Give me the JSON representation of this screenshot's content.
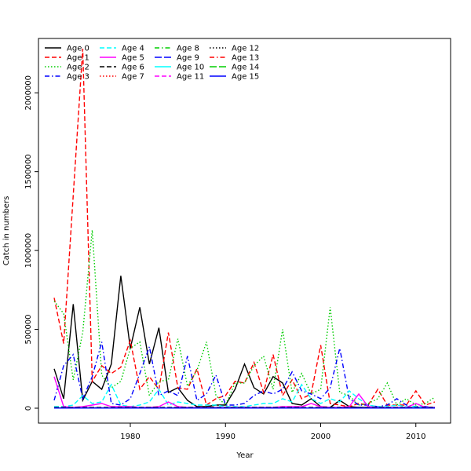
{
  "chart_data": {
    "type": "line",
    "title": "",
    "xlabel": "Year",
    "ylabel": "Catch in numbers",
    "xlim": [
      1972,
      2012
    ],
    "ylim": [
      0,
      2250000
    ],
    "x_ticks": [
      1980,
      1990,
      2000,
      2010
    ],
    "y_ticks": [
      0,
      500000,
      1000000,
      1500000,
      2000000
    ],
    "grid": false,
    "legend_position": "top-left",
    "x": [
      1972,
      1973,
      1974,
      1975,
      1976,
      1977,
      1978,
      1979,
      1980,
      1981,
      1982,
      1983,
      1984,
      1985,
      1986,
      1987,
      1988,
      1989,
      1990,
      1991,
      1992,
      1993,
      1994,
      1995,
      1996,
      1997,
      1998,
      1999,
      2000,
      2001,
      2002,
      2003,
      2004,
      2005,
      2006,
      2007,
      2008,
      2009,
      2010,
      2011,
      2012
    ],
    "series": [
      {
        "name": "Age 0",
        "color": "#000000",
        "dash": "solid",
        "values": [
          250000,
          60000,
          660000,
          50000,
          170000,
          120000,
          280000,
          840000,
          380000,
          640000,
          280000,
          510000,
          100000,
          130000,
          50000,
          10000,
          10000,
          20000,
          20000,
          120000,
          280000,
          130000,
          90000,
          200000,
          160000,
          30000,
          20000,
          60000,
          10000,
          5000,
          50000,
          10000,
          5000,
          5000,
          3000,
          3000,
          3000,
          2000,
          2000,
          1000,
          1000
        ]
      },
      {
        "name": "Age 1",
        "color": "#ff0000",
        "dash": "dashed",
        "values": [
          700000,
          410000,
          1350000,
          2280000,
          170000,
          270000,
          220000,
          260000,
          430000,
          120000,
          200000,
          120000,
          480000,
          130000,
          120000,
          250000,
          20000,
          60000,
          80000,
          170000,
          160000,
          290000,
          100000,
          340000,
          80000,
          180000,
          60000,
          90000,
          400000,
          30000,
          20000,
          10000,
          30000,
          20000,
          120000,
          20000,
          20000,
          20000,
          110000,
          20000,
          40000
        ]
      },
      {
        "name": "Age 2",
        "color": "#00cd00",
        "dash": "dotted",
        "values": [
          680000,
          600000,
          180000,
          480000,
          1130000,
          210000,
          130000,
          170000,
          380000,
          420000,
          80000,
          170000,
          180000,
          440000,
          140000,
          240000,
          420000,
          80000,
          20000,
          160000,
          160000,
          270000,
          330000,
          120000,
          500000,
          100000,
          220000,
          90000,
          120000,
          640000,
          100000,
          80000,
          20000,
          30000,
          60000,
          160000,
          20000,
          60000,
          20000,
          30000,
          70000
        ]
      },
      {
        "name": "Age 3",
        "color": "#0000ff",
        "dash": "dashdot",
        "values": [
          50000,
          270000,
          340000,
          60000,
          200000,
          420000,
          30000,
          20000,
          60000,
          220000,
          390000,
          80000,
          110000,
          80000,
          330000,
          50000,
          90000,
          210000,
          20000,
          20000,
          30000,
          80000,
          110000,
          90000,
          120000,
          230000,
          110000,
          90000,
          60000,
          130000,
          380000,
          60000,
          20000,
          20000,
          10000,
          20000,
          60000,
          20000,
          10000,
          10000,
          5000
        ]
      },
      {
        "name": "Age 4",
        "color": "#00ffff",
        "dash": "dashed",
        "values": [
          10000,
          10000,
          20000,
          80000,
          30000,
          40000,
          150000,
          20000,
          10000,
          20000,
          40000,
          120000,
          20000,
          40000,
          30000,
          20000,
          20000,
          20000,
          10000,
          10000,
          10000,
          20000,
          30000,
          30000,
          60000,
          40000,
          150000,
          60000,
          30000,
          60000,
          40000,
          110000,
          60000,
          20000,
          10000,
          10000,
          20000,
          10000,
          10000,
          5000,
          5000
        ]
      },
      {
        "name": "Age 5",
        "color": "#ff00ff",
        "dash": "solid",
        "values": [
          200000,
          10000,
          5000,
          10000,
          20000,
          30000,
          10000,
          10000,
          10000,
          5000,
          5000,
          10000,
          40000,
          10000,
          5000,
          5000,
          5000,
          5000,
          5000,
          5000,
          5000,
          5000,
          5000,
          5000,
          10000,
          10000,
          10000,
          30000,
          10000,
          5000,
          5000,
          10000,
          90000,
          10000,
          5000,
          5000,
          5000,
          5000,
          30000,
          5000,
          5000
        ]
      },
      {
        "name": "Age 6",
        "color": "#000000",
        "dash": "dashed",
        "values": [
          5000,
          5000,
          5000,
          5000,
          5000,
          5000,
          5000,
          5000,
          5000,
          5000,
          5000,
          5000,
          5000,
          5000,
          5000,
          5000,
          5000,
          5000,
          5000,
          5000,
          5000,
          5000,
          5000,
          5000,
          5000,
          5000,
          5000,
          5000,
          5000,
          5000,
          5000,
          5000,
          5000,
          5000,
          5000,
          5000,
          5000,
          5000,
          5000,
          5000,
          5000
        ]
      },
      {
        "name": "Age 7",
        "color": "#ff0000",
        "dash": "dotted",
        "values": [
          3000,
          3000,
          3000,
          3000,
          3000,
          3000,
          3000,
          3000,
          3000,
          3000,
          3000,
          3000,
          3000,
          3000,
          3000,
          3000,
          3000,
          3000,
          3000,
          3000,
          3000,
          3000,
          3000,
          3000,
          3000,
          3000,
          3000,
          3000,
          3000,
          3000,
          3000,
          3000,
          3000,
          3000,
          3000,
          3000,
          3000,
          3000,
          3000,
          3000,
          3000
        ]
      },
      {
        "name": "Age 8",
        "color": "#00cd00",
        "dash": "dashdot",
        "values": [
          2000,
          2000,
          2000,
          2000,
          2000,
          2000,
          2000,
          2000,
          2000,
          2000,
          2000,
          2000,
          2000,
          2000,
          2000,
          2000,
          2000,
          2000,
          2000,
          2000,
          2000,
          2000,
          2000,
          2000,
          2000,
          2000,
          2000,
          2000,
          2000,
          2000,
          2000,
          2000,
          2000,
          2000,
          2000,
          2000,
          2000,
          2000,
          2000,
          2000,
          2000
        ]
      },
      {
        "name": "Age 9",
        "color": "#0000ff",
        "dash": "longdash",
        "values": [
          2000,
          2000,
          2000,
          2000,
          2000,
          2000,
          2000,
          2000,
          2000,
          2000,
          2000,
          2000,
          2000,
          2000,
          2000,
          2000,
          2000,
          2000,
          2000,
          2000,
          2000,
          2000,
          2000,
          2000,
          2000,
          2000,
          2000,
          2000,
          2000,
          2000,
          2000,
          2000,
          2000,
          2000,
          2000,
          2000,
          2000,
          2000,
          2000,
          2000,
          2000
        ]
      },
      {
        "name": "Age 10",
        "color": "#00ffff",
        "dash": "solid",
        "values": [
          1000,
          1000,
          1000,
          1000,
          1000,
          1000,
          1000,
          1000,
          1000,
          1000,
          1000,
          1000,
          1000,
          1000,
          1000,
          1000,
          1000,
          1000,
          1000,
          1000,
          1000,
          1000,
          1000,
          1000,
          1000,
          1000,
          1000,
          1000,
          1000,
          1000,
          1000,
          1000,
          1000,
          1000,
          1000,
          1000,
          1000,
          1000,
          1000,
          1000,
          1000
        ]
      },
      {
        "name": "Age 11",
        "color": "#ff00ff",
        "dash": "dashed",
        "values": [
          1000,
          1000,
          1000,
          1000,
          1000,
          1000,
          1000,
          1000,
          1000,
          1000,
          1000,
          1000,
          1000,
          1000,
          1000,
          1000,
          1000,
          1000,
          1000,
          1000,
          1000,
          1000,
          1000,
          1000,
          1000,
          1000,
          1000,
          1000,
          1000,
          1000,
          1000,
          1000,
          1000,
          1000,
          1000,
          1000,
          1000,
          1000,
          1000,
          1000,
          1000
        ]
      },
      {
        "name": "Age 12",
        "color": "#000000",
        "dash": "dotted",
        "values": [
          1000,
          1000,
          1000,
          1000,
          1000,
          1000,
          1000,
          1000,
          1000,
          1000,
          1000,
          1000,
          1000,
          1000,
          1000,
          1000,
          1000,
          1000,
          1000,
          1000,
          1000,
          1000,
          1000,
          1000,
          1000,
          1000,
          1000,
          1000,
          1000,
          1000,
          1000,
          1000,
          1000,
          1000,
          1000,
          1000,
          1000,
          1000,
          1000,
          1000,
          1000
        ]
      },
      {
        "name": "Age 13",
        "color": "#ff0000",
        "dash": "dashdot",
        "values": [
          1000,
          1000,
          1000,
          1000,
          1000,
          1000,
          1000,
          1000,
          1000,
          1000,
          1000,
          1000,
          1000,
          1000,
          1000,
          1000,
          1000,
          1000,
          1000,
          1000,
          1000,
          1000,
          1000,
          1000,
          1000,
          1000,
          1000,
          1000,
          1000,
          1000,
          1000,
          1000,
          1000,
          1000,
          1000,
          1000,
          1000,
          1000,
          1000,
          1000,
          1000
        ]
      },
      {
        "name": "Age 14",
        "color": "#00cd00",
        "dash": "longdash",
        "values": [
          1000,
          1000,
          1000,
          1000,
          1000,
          1000,
          1000,
          1000,
          1000,
          1000,
          1000,
          1000,
          1000,
          1000,
          1000,
          1000,
          1000,
          1000,
          1000,
          1000,
          1000,
          1000,
          1000,
          1000,
          1000,
          1000,
          1000,
          1000,
          1000,
          1000,
          1000,
          1000,
          1000,
          1000,
          1000,
          1000,
          1000,
          1000,
          1000,
          1000,
          1000
        ]
      },
      {
        "name": "Age 15",
        "color": "#0000ff",
        "dash": "solid",
        "values": [
          1000,
          1000,
          1000,
          1000,
          1000,
          1000,
          1000,
          1000,
          1000,
          1000,
          1000,
          1000,
          1000,
          1000,
          1000,
          1000,
          1000,
          1000,
          1000,
          1000,
          1000,
          1000,
          1000,
          1000,
          1000,
          1000,
          1000,
          1000,
          1000,
          1000,
          1000,
          1000,
          1000,
          1000,
          1000,
          1000,
          1000,
          1000,
          1000,
          1000,
          1000
        ]
      }
    ]
  }
}
